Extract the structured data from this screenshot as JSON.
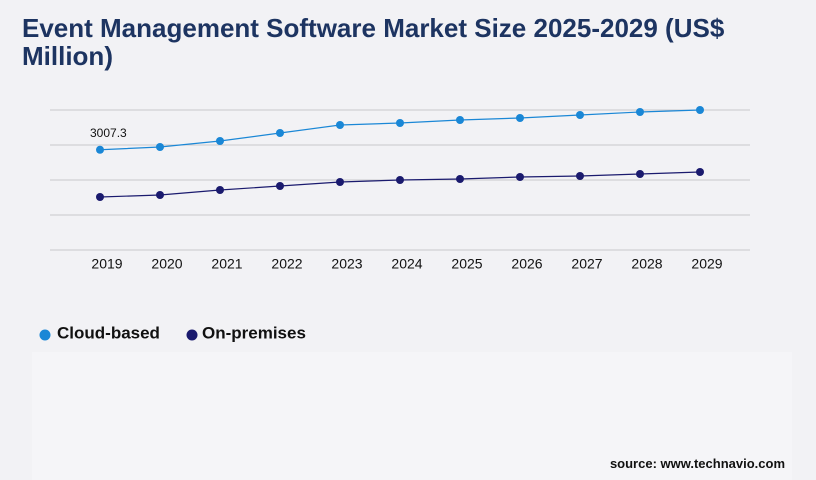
{
  "chart_data": {
    "type": "line",
    "title": "Event Management Software Market Size 2025-2029 (US$ Million)",
    "categories": [
      "2019",
      "2020",
      "2021",
      "2022",
      "2023",
      "2024",
      "2025",
      "2026",
      "2027",
      "2028",
      "2029"
    ],
    "series": [
      {
        "name": "Cloud-based",
        "color": "#1a87d6",
        "values": [
          3007.3,
          3090,
          3270,
          3510,
          3750,
          3810,
          3900,
          3960,
          4050,
          4140,
          4200
        ]
      },
      {
        "name": "On-premises",
        "color": "#1a1a6e",
        "values": [
          1590,
          1650,
          1800,
          1920,
          2040,
          2100,
          2130,
          2190,
          2220,
          2280,
          2340
        ]
      }
    ],
    "data_labels": [
      {
        "series": 0,
        "index": 0
      }
    ],
    "ylim": [
      0,
      4200
    ],
    "ygrid": [
      0,
      1050,
      2100,
      3150,
      4200
    ],
    "grid": true,
    "source": "source: www.technavio.com"
  }
}
